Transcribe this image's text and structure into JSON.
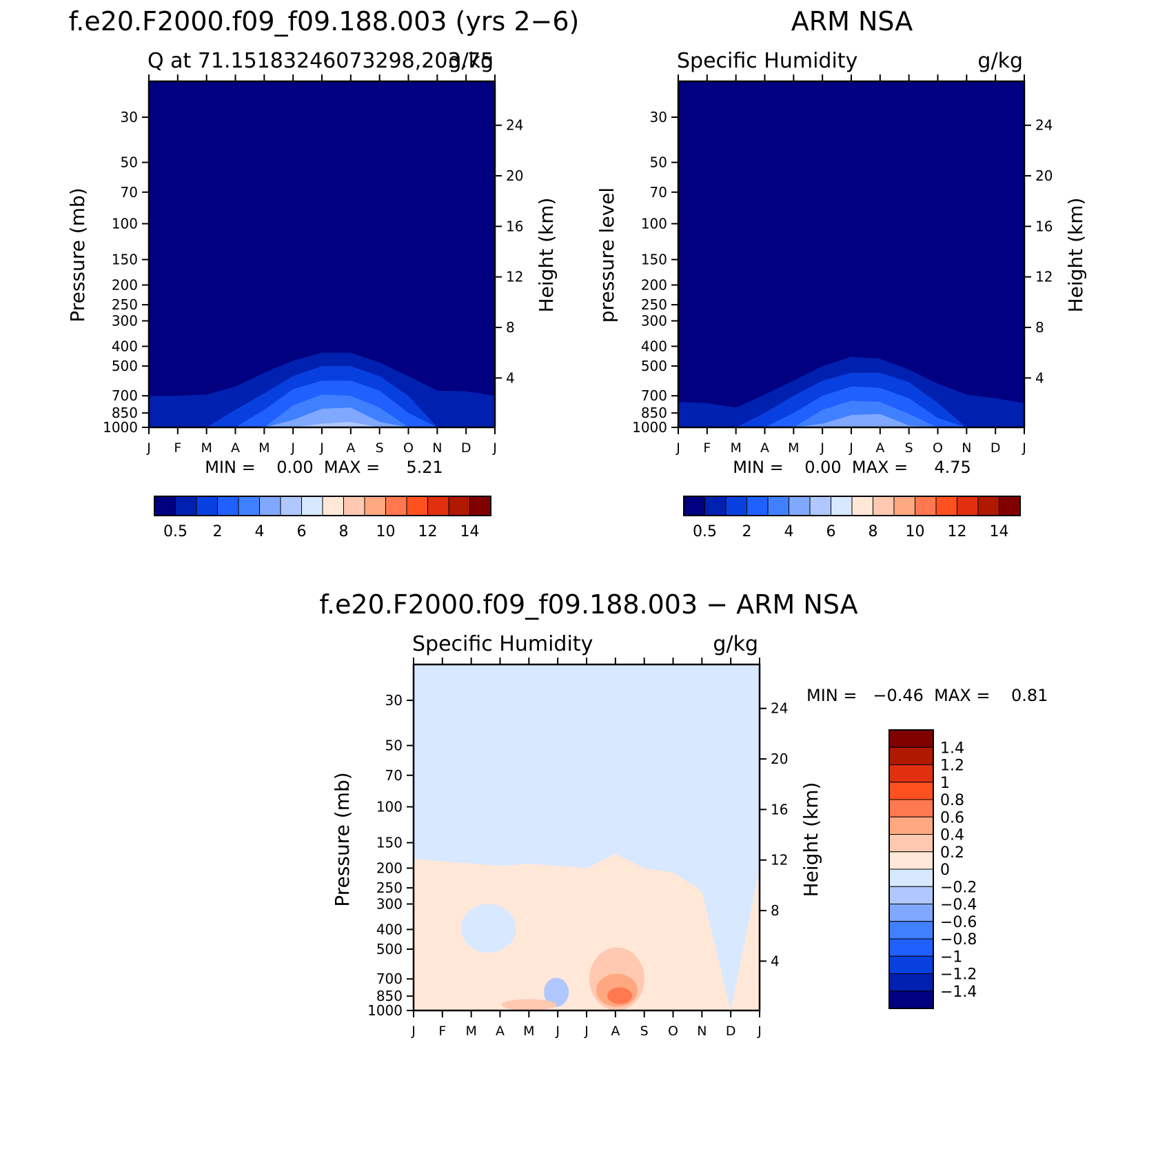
{
  "figure": {
    "panels": [
      {
        "id": "model",
        "title": "f.e20.F2000.f09_f09.188.003 (yrs 2−6)",
        "left_label": "Q at 71.15183246073298,203.75",
        "right_label": "g/kg",
        "ylabel": "Pressure (mb)",
        "y2label": "Height (km)",
        "min_text": "MIN =    0.00  MAX =     5.21",
        "palette": "full"
      },
      {
        "id": "obs",
        "title": "ARM NSA",
        "left_label": "Specific Humidity",
        "right_label": "g/kg",
        "ylabel": "pressure level",
        "y2label": "Height (km)",
        "min_text": "MIN =    0.00  MAX =     4.75",
        "palette": "full"
      },
      {
        "id": "diff",
        "title": "f.e20.F2000.f09_f09.188.003 − ARM NSA",
        "left_label": "Specific Humidity",
        "right_label": "g/kg",
        "ylabel": "Pressure (mb)",
        "y2label": "Height (km)",
        "min_text": "MIN =   −0.46  MAX =    0.81",
        "palette": "diff"
      }
    ],
    "colors": {
      "full": [
        "#000080",
        "#0020b0",
        "#0840e0",
        "#2060ff",
        "#4080ff",
        "#80a8ff",
        "#b0c8ff",
        "#d8e8ff",
        "#ffe8d8",
        "#ffc8b0",
        "#ffa880",
        "#ff7850",
        "#ff5020",
        "#e03010",
        "#b01800",
        "#800000"
      ],
      "diff": [
        "#000080",
        "#0020b0",
        "#0840e0",
        "#2060ff",
        "#4080ff",
        "#80a8ff",
        "#b0c8ff",
        "#d8e8ff",
        "#ffe8d8",
        "#ffc8b0",
        "#ffa880",
        "#ff7850",
        "#ff5020",
        "#e03010",
        "#b01800",
        "#800000"
      ]
    }
  },
  "chart_data": [
    {
      "type": "heatmap",
      "title": "f.e20.F2000.f09_f09.188.003 (yrs 2−6)",
      "subtitle": "Q at 71.15183246073298,203.75",
      "units": "g/kg",
      "xlabel": "",
      "ylabel": "Pressure (mb)",
      "y2label": "Height (km)",
      "x_ticks": [
        "J",
        "F",
        "M",
        "A",
        "M",
        "J",
        "J",
        "A",
        "S",
        "O",
        "N",
        "D",
        "J"
      ],
      "y_ticks": [
        "30",
        "50",
        "70",
        "100",
        "150",
        "200",
        "250",
        "300",
        "400",
        "500",
        "700",
        "850",
        "1000"
      ],
      "y2_ticks": [
        "24",
        "20",
        "16",
        "12",
        "8",
        "4"
      ],
      "ylim": [
        1000,
        20
      ],
      "y_scale": "log",
      "colorbar_ticks": [
        "0.5",
        "2",
        "4",
        "6",
        "8",
        "10",
        "12",
        "14"
      ],
      "colorbar_levels": [
        0.5,
        1,
        2,
        3,
        4,
        5,
        6,
        7,
        8,
        9,
        10,
        11,
        12,
        13,
        14
      ],
      "min": 0.0,
      "max": 5.21,
      "boundary_pressure_by_month": [
        {
          "level": 0.5,
          "p": [
            700,
            700,
            690,
            630,
            540,
            470,
            430,
            430,
            480,
            560,
            660,
            665,
            700
          ]
        },
        {
          "level": 1,
          "p": [
            1000,
            1000,
            1000,
            820,
            680,
            560,
            500,
            500,
            560,
            700,
            1000,
            1000,
            1000
          ]
        },
        {
          "level": 2,
          "p": [
            1000,
            1000,
            1000,
            1000,
            820,
            650,
            590,
            590,
            660,
            850,
            1000,
            1000,
            1000
          ]
        },
        {
          "level": 3,
          "p": [
            1000,
            1000,
            1000,
            1000,
            1000,
            780,
            690,
            700,
            800,
            1000,
            1000,
            1000,
            1000
          ]
        },
        {
          "level": 4,
          "p": [
            1000,
            1000,
            1000,
            1000,
            1000,
            920,
            810,
            800,
            940,
            1000,
            1000,
            1000,
            1000
          ]
        },
        {
          "level": 5,
          "p": [
            1000,
            1000,
            1000,
            1000,
            1000,
            1000,
            960,
            940,
            1000,
            1000,
            1000,
            1000,
            1000
          ]
        }
      ]
    },
    {
      "type": "heatmap",
      "title": "ARM NSA",
      "subtitle": "Specific Humidity",
      "units": "g/kg",
      "xlabel": "",
      "ylabel": "pressure level",
      "y2label": "Height (km)",
      "x_ticks": [
        "J",
        "F",
        "M",
        "A",
        "M",
        "J",
        "J",
        "A",
        "S",
        "O",
        "N",
        "D",
        "J"
      ],
      "y_ticks": [
        "30",
        "50",
        "70",
        "100",
        "150",
        "200",
        "250",
        "300",
        "400",
        "500",
        "700",
        "850",
        "1000"
      ],
      "y2_ticks": [
        "24",
        "20",
        "16",
        "12",
        "8",
        "4"
      ],
      "ylim": [
        1000,
        20
      ],
      "y_scale": "log",
      "colorbar_ticks": [
        "0.5",
        "2",
        "4",
        "6",
        "8",
        "10",
        "12",
        "14"
      ],
      "colorbar_levels": [
        0.5,
        1,
        2,
        3,
        4,
        5,
        6,
        7,
        8,
        9,
        10,
        11,
        12,
        13,
        14
      ],
      "min": 0.0,
      "max": 4.75,
      "boundary_pressure_by_month": [
        {
          "level": 0.5,
          "p": [
            750,
            760,
            800,
            690,
            590,
            500,
            450,
            460,
            520,
            610,
            690,
            720,
            760
          ]
        },
        {
          "level": 1,
          "p": [
            1000,
            1000,
            1000,
            850,
            700,
            590,
            540,
            540,
            600,
            760,
            1000,
            1000,
            1000
          ]
        },
        {
          "level": 2,
          "p": [
            1000,
            1000,
            1000,
            1000,
            850,
            700,
            630,
            640,
            720,
            900,
            1000,
            1000,
            1000
          ]
        },
        {
          "level": 3,
          "p": [
            1000,
            1000,
            1000,
            1000,
            1000,
            820,
            740,
            750,
            860,
            1000,
            1000,
            1000,
            1000
          ]
        },
        {
          "level": 4,
          "p": [
            1000,
            1000,
            1000,
            1000,
            1000,
            960,
            870,
            860,
            980,
            1000,
            1000,
            1000,
            1000
          ]
        }
      ]
    },
    {
      "type": "heatmap",
      "title": "f.e20.F2000.f09_f09.188.003 − ARM NSA",
      "subtitle": "Specific Humidity",
      "units": "g/kg",
      "xlabel": "",
      "ylabel": "Pressure (mb)",
      "y2label": "Height (km)",
      "x_ticks": [
        "J",
        "F",
        "M",
        "A",
        "M",
        "J",
        "J",
        "A",
        "S",
        "O",
        "N",
        "D",
        "J"
      ],
      "y_ticks": [
        "30",
        "50",
        "70",
        "100",
        "150",
        "200",
        "250",
        "300",
        "400",
        "500",
        "700",
        "850",
        "1000"
      ],
      "y2_ticks": [
        "24",
        "20",
        "16",
        "12",
        "8",
        "4"
      ],
      "ylim": [
        1000,
        20
      ],
      "y_scale": "log",
      "colorbar_ticks": [
        "1.4",
        "1.2",
        "1",
        "0.8",
        "0.6",
        "0.4",
        "0.2",
        "0",
        "−0.2",
        "−0.4",
        "−0.6",
        "−0.8",
        "−1",
        "−1.2",
        "−1.4"
      ],
      "min": -0.46,
      "max": 0.81,
      "background_value_range": [
        -0.2,
        0
      ],
      "positive_region_top_pressure_by_month": [
        180,
        185,
        190,
        195,
        190,
        195,
        200,
        170,
        200,
        210,
        260,
        1000,
        200
      ],
      "features": [
        {
          "kind": "negative",
          "range": [
            -0.2,
            0
          ],
          "month": 2.6,
          "p_top": 300,
          "p_bottom": 520
        },
        {
          "kind": "positive",
          "range": [
            0.2,
            0.4
          ],
          "month": 7.05,
          "p_top": 490,
          "p_bottom": 1000
        },
        {
          "kind": "positive",
          "range": [
            0.4,
            0.6
          ],
          "month": 7.05,
          "p_top": 660,
          "p_bottom": 960
        },
        {
          "kind": "positive",
          "range": [
            0.6,
            0.8
          ],
          "month": 7.15,
          "p_top": 770,
          "p_bottom": 930
        },
        {
          "kind": "negative",
          "range": [
            -0.4,
            -0.2
          ],
          "month": 4.95,
          "p_top": 690,
          "p_bottom": 960
        },
        {
          "kind": "positive",
          "range": [
            0.2,
            0.4
          ],
          "month": 4.0,
          "p_top": 880,
          "p_bottom": 1000
        }
      ]
    }
  ]
}
